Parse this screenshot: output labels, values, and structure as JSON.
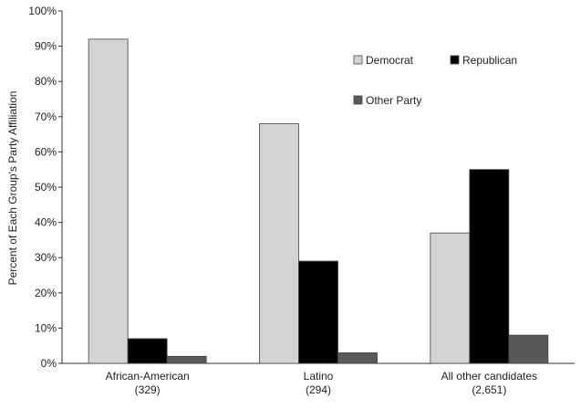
{
  "chart_data": {
    "type": "bar",
    "title": "",
    "ylabel": "Percent of Each Group's Party Affiliation",
    "xlabel": "",
    "ylim": [
      0,
      100
    ],
    "yticks": [
      0,
      10,
      20,
      30,
      40,
      50,
      60,
      70,
      80,
      90,
      100
    ],
    "ytick_suffix": "%",
    "grid": false,
    "legend_placement": "top-right",
    "categories": [
      {
        "line1": "African-American",
        "line2": "(329)"
      },
      {
        "line1": "Latino",
        "line2": "(294)"
      },
      {
        "line1": "All other candidates",
        "line2": "(2,651)"
      }
    ],
    "series": [
      {
        "name": "Democrat",
        "color": "#d3d3d3",
        "values": [
          92,
          68,
          37
        ]
      },
      {
        "name": "Republican",
        "color": "#000000",
        "values": [
          7,
          29,
          55
        ]
      },
      {
        "name": "Other Party",
        "color": "#595959",
        "values": [
          2,
          3,
          8
        ]
      }
    ]
  }
}
